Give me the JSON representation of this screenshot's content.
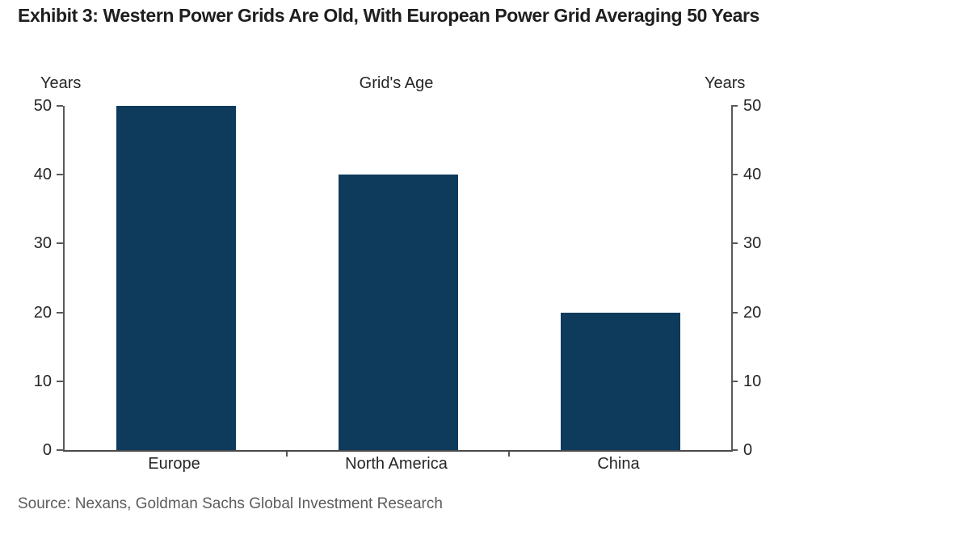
{
  "exhibit_title": "Exhibit 3: Western Power Grids Are Old, With European Power Grid Averaging 50 Years",
  "source_line": "Source: Nexans, Goldman Sachs Global Investment Research",
  "chart_data": {
    "type": "bar",
    "title": "Grid's Age",
    "categories": [
      "Europe",
      "North America",
      "China"
    ],
    "values": [
      50,
      40,
      20
    ],
    "xlabel": "",
    "ylabel_left": "Years",
    "ylabel_right": "Years",
    "ylim": [
      0,
      50
    ],
    "yticks": [
      0,
      10,
      20,
      30,
      40,
      50
    ],
    "grid": false,
    "legend_position": "none",
    "bar_color": "#0e3a5c",
    "axis_color": "#595959",
    "text_color": "#262626"
  }
}
